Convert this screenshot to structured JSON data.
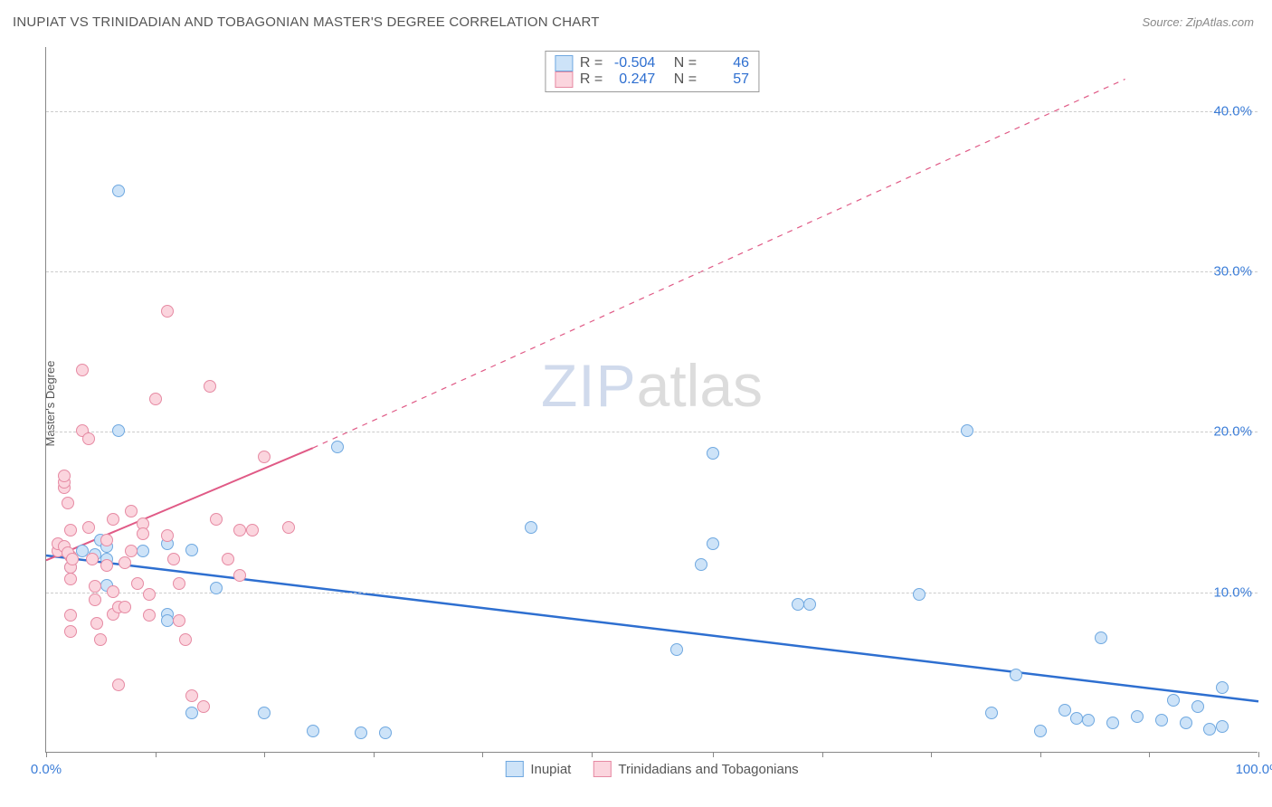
{
  "header": {
    "title": "INUPIAT VS TRINIDADIAN AND TOBAGONIAN MASTER'S DEGREE CORRELATION CHART",
    "source_prefix": "Source: ",
    "source_name": "ZipAtlas.com"
  },
  "chart": {
    "type": "scatter",
    "ylabel": "Master's Degree",
    "xlim": [
      0,
      100
    ],
    "ylim": [
      0,
      44
    ],
    "xtick_positions": [
      0,
      9,
      18,
      27,
      36,
      45,
      55,
      64,
      73,
      82,
      91,
      100
    ],
    "xtick_labels": {
      "0": "0.0%",
      "100": "100.0%"
    },
    "ytick_positions": [
      10,
      20,
      30,
      40
    ],
    "ytick_labels": [
      "10.0%",
      "20.0%",
      "30.0%",
      "40.0%"
    ],
    "grid_color": "#cccccc",
    "axis_color": "#888888",
    "background_color": "#ffffff",
    "marker_radius": 7,
    "marker_stroke_width": 1,
    "watermark": {
      "zip": "ZIP",
      "atlas": "atlas"
    },
    "series": [
      {
        "name": "Inupiat",
        "fill": "#cde3f8",
        "stroke": "#6fa8e0",
        "line_color": "#2e6fd0",
        "line_width": 2.5,
        "line_dash": "none",
        "trend": {
          "x1": 0,
          "y1": 12.3,
          "x2": 100,
          "y2": 3.2
        },
        "points": [
          [
            6,
            35
          ],
          [
            24,
            19
          ],
          [
            6,
            20
          ],
          [
            10,
            13
          ],
          [
            12,
            12.6
          ],
          [
            5,
            10.4
          ],
          [
            3,
            12.5
          ],
          [
            4,
            12.3
          ],
          [
            5,
            12
          ],
          [
            2,
            11.5
          ],
          [
            4.5,
            13.2
          ],
          [
            5,
            12.8
          ],
          [
            14,
            10.2
          ],
          [
            10,
            8.6
          ],
          [
            10,
            8.2
          ],
          [
            8,
            12.5
          ],
          [
            12,
            2.4
          ],
          [
            18,
            2.4
          ],
          [
            22,
            1.3
          ],
          [
            26,
            1.2
          ],
          [
            28,
            1.2
          ],
          [
            40,
            14
          ],
          [
            54,
            11.7
          ],
          [
            55,
            18.6
          ],
          [
            55,
            13
          ],
          [
            52,
            6.4
          ],
          [
            62,
            9.2
          ],
          [
            63,
            9.2
          ],
          [
            72,
            9.8
          ],
          [
            76,
            20
          ],
          [
            80,
            4.8
          ],
          [
            78,
            2.4
          ],
          [
            82,
            1.3
          ],
          [
            84,
            2.6
          ],
          [
            85,
            2.1
          ],
          [
            86,
            2.0
          ],
          [
            87,
            7.1
          ],
          [
            88,
            1.8
          ],
          [
            90,
            2.2
          ],
          [
            92,
            2.0
          ],
          [
            93,
            3.2
          ],
          [
            94,
            1.8
          ],
          [
            96,
            1.4
          ],
          [
            97,
            1.6
          ],
          [
            97,
            4.0
          ],
          [
            95,
            2.8
          ]
        ]
      },
      {
        "name": "Trinidadians and Tobagonians",
        "fill": "#fbd5de",
        "stroke": "#e68aa3",
        "line_color": "#e05a86",
        "line_width": 2,
        "line_dash": "solid_then_dashed",
        "trend_solid": {
          "x1": 0,
          "y1": 12.0,
          "x2": 22,
          "y2": 19.0
        },
        "trend_dashed": {
          "x1": 22,
          "y1": 19.0,
          "x2": 89,
          "y2": 42.0
        },
        "points": [
          [
            1,
            12.5
          ],
          [
            1,
            13
          ],
          [
            1.5,
            16.5
          ],
          [
            1.5,
            16.8
          ],
          [
            1.5,
            17.2
          ],
          [
            1.8,
            15.5
          ],
          [
            2,
            13.8
          ],
          [
            2,
            12.2
          ],
          [
            2,
            11.5
          ],
          [
            2,
            10.8
          ],
          [
            2,
            8.5
          ],
          [
            2,
            7.5
          ],
          [
            1.5,
            12.8
          ],
          [
            1.8,
            12.4
          ],
          [
            2.2,
            12.0
          ],
          [
            3,
            23.8
          ],
          [
            3,
            20
          ],
          [
            3.5,
            19.5
          ],
          [
            3.5,
            14
          ],
          [
            3.8,
            12.0
          ],
          [
            4,
            10.3
          ],
          [
            4,
            9.5
          ],
          [
            4.2,
            8.0
          ],
          [
            4.5,
            7.0
          ],
          [
            5,
            13.2
          ],
          [
            5,
            11.6
          ],
          [
            5.5,
            14.5
          ],
          [
            5.5,
            10.0
          ],
          [
            5.5,
            8.6
          ],
          [
            6,
            9.0
          ],
          [
            6,
            4.2
          ],
          [
            6.5,
            11.8
          ],
          [
            6.5,
            9.0
          ],
          [
            7,
            15
          ],
          [
            7,
            12.5
          ],
          [
            7.5,
            10.5
          ],
          [
            8,
            14.2
          ],
          [
            8,
            13.6
          ],
          [
            8.5,
            9.8
          ],
          [
            8.5,
            8.5
          ],
          [
            9,
            22
          ],
          [
            10,
            27.5
          ],
          [
            10,
            13.5
          ],
          [
            10.5,
            12.0
          ],
          [
            11,
            10.5
          ],
          [
            11,
            8.2
          ],
          [
            11.5,
            7.0
          ],
          [
            12,
            3.5
          ],
          [
            13,
            2.8
          ],
          [
            13.5,
            22.8
          ],
          [
            14,
            14.5
          ],
          [
            15,
            12.0
          ],
          [
            16,
            13.8
          ],
          [
            16,
            11.0
          ],
          [
            17,
            13.8
          ],
          [
            18,
            18.4
          ],
          [
            20,
            14.0
          ]
        ]
      }
    ]
  },
  "legend_top": {
    "rows": [
      {
        "swatch_fill": "#cde3f8",
        "swatch_stroke": "#6fa8e0",
        "r_label": "R =",
        "r_value": "-0.504",
        "n_label": "N =",
        "n_value": "46"
      },
      {
        "swatch_fill": "#fbd5de",
        "swatch_stroke": "#e68aa3",
        "r_label": "R =",
        "r_value": "0.247",
        "n_label": "N =",
        "n_value": "57"
      }
    ]
  },
  "legend_bottom": {
    "items": [
      {
        "swatch_fill": "#cde3f8",
        "swatch_stroke": "#6fa8e0",
        "label": "Inupiat"
      },
      {
        "swatch_fill": "#fbd5de",
        "swatch_stroke": "#e68aa3",
        "label": "Trinidadians and Tobagonians"
      }
    ]
  }
}
